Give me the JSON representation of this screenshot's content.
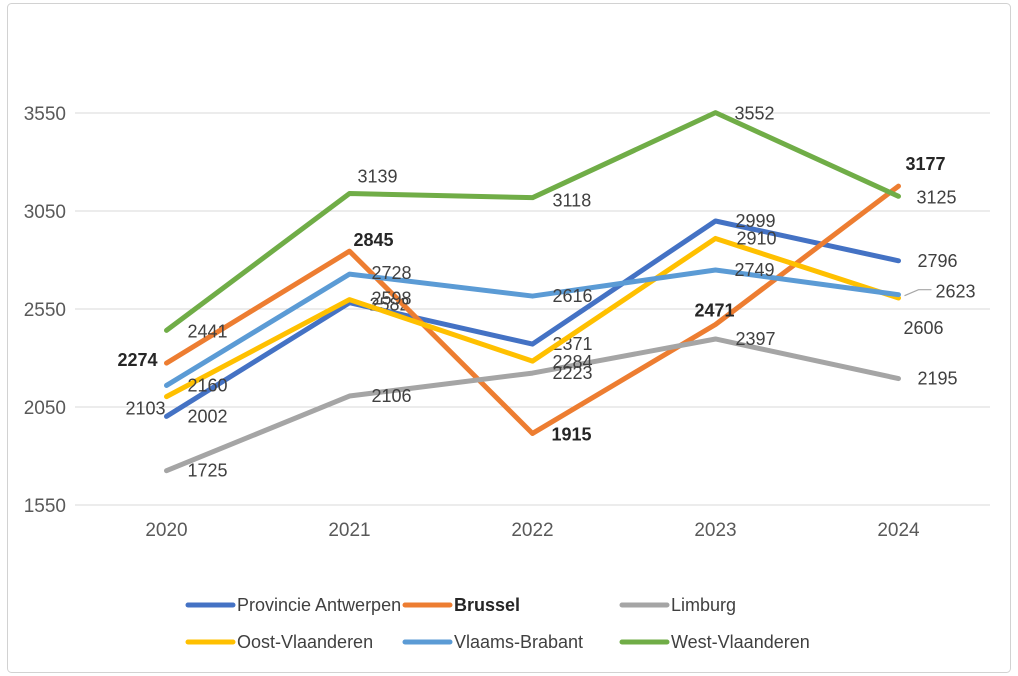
{
  "figure": {
    "background": "#ffffff",
    "border_color": "#d2d2d2",
    "grid_color": "#d9d9d9",
    "tick_color": "#595959",
    "label_color": "#404040",
    "bold_label_color": "#262626",
    "leader_color": "#a6a6a6"
  },
  "chart_data": {
    "type": "line",
    "title": "",
    "xlabel": "",
    "ylabel": "",
    "x_categories": [
      "2020",
      "2021",
      "2022",
      "2023",
      "2024"
    ],
    "y_ticks": [
      1550,
      2050,
      2550,
      3050,
      3550
    ],
    "ylim": [
      1550,
      3550
    ],
    "grid": true,
    "legend_position": "bottom",
    "series": [
      {
        "name": "Provincie Antwerpen",
        "color": "#4472C4",
        "bold": false,
        "values": [
          2002,
          2582,
          2371,
          2999,
          2796
        ],
        "label_offsets": [
          [
            21,
            6,
            "s"
          ],
          [
            20,
            8,
            "s"
          ],
          [
            20,
            6,
            "s"
          ],
          [
            20,
            6,
            "s"
          ],
          [
            19,
            6,
            "s"
          ]
        ]
      },
      {
        "name": "Brussel",
        "color": "#ED7D31",
        "bold": true,
        "values": [
          2274,
          2845,
          1915,
          2471,
          3177
        ],
        "label_offsets": [
          [
            -9,
            3,
            "e"
          ],
          [
            4,
            -5,
            "s"
          ],
          [
            19,
            7,
            "s"
          ],
          [
            -21,
            -8,
            "s"
          ],
          [
            7,
            -16,
            "s"
          ]
        ]
      },
      {
        "name": "Limburg",
        "color": "#A5A5A5",
        "bold": false,
        "values": [
          1725,
          2106,
          2223,
          2397,
          2195
        ],
        "label_offsets": [
          [
            21,
            6,
            "s"
          ],
          [
            22,
            6,
            "s"
          ],
          [
            20,
            6,
            "s"
          ],
          [
            20,
            6,
            "s"
          ],
          [
            19,
            6,
            "s"
          ]
        ]
      },
      {
        "name": "Oost-Vlaanderen",
        "color": "#FFC000",
        "bold": false,
        "values": [
          2103,
          2598,
          2284,
          2910,
          2606
        ],
        "label_offsets": [
          [
            -1,
            18,
            "e"
          ],
          [
            22,
            5,
            "s"
          ],
          [
            20,
            7,
            "s"
          ],
          [
            21,
            6,
            "s"
          ],
          [
            5,
            36,
            "s"
          ]
        ]
      },
      {
        "name": "Vlaams-Brabant",
        "color": "#5B9BD5",
        "bold": false,
        "values": [
          2160,
          2728,
          2616,
          2749,
          2623
        ],
        "label_offsets": [
          [
            21,
            6,
            "s"
          ],
          [
            22,
            5,
            "s"
          ],
          [
            20,
            6,
            "s"
          ],
          [
            19,
            6,
            "s"
          ],
          [
            37,
            3,
            "s"
          ]
        ]
      },
      {
        "name": "West-Vlaanderen",
        "color": "#70AD47",
        "bold": false,
        "values": [
          2441,
          3139,
          3118,
          3552,
          3125
        ],
        "label_offsets": [
          [
            21,
            7,
            "s"
          ],
          [
            8,
            -11,
            "s"
          ],
          [
            20,
            9,
            "s"
          ],
          [
            19,
            7,
            "s"
          ],
          [
            18,
            7,
            "s"
          ]
        ]
      }
    ],
    "leader_line": {
      "series_index": 4,
      "point_index": 4
    },
    "legend_rows": [
      [
        "Provincie Antwerpen",
        "Brussel",
        "Limburg"
      ],
      [
        "Oost-Vlaanderen",
        "Vlaams-Brabant",
        "West-Vlaanderen"
      ]
    ]
  }
}
